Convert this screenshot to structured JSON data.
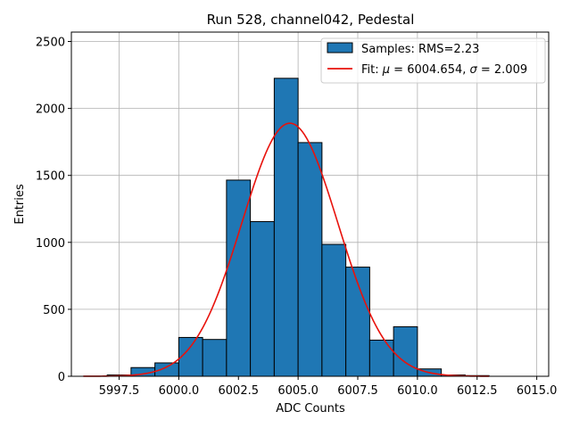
{
  "chart_data": {
    "type": "bar",
    "title": "Run 528, channel042, Pedestal",
    "xlabel": "ADC Counts",
    "ylabel": "Entries",
    "xlim": [
      5995.5,
      6015.5
    ],
    "ylim": [
      0,
      2570
    ],
    "grid": true,
    "legend_position": "top-right",
    "xticks": [
      5997.5,
      6000.0,
      6002.5,
      6005.0,
      6007.5,
      6010.0,
      6012.5,
      6015.0
    ],
    "xtick_labels": [
      "5997.5",
      "6000.0",
      "6002.5",
      "6005.0",
      "6007.5",
      "6010.0",
      "6012.5",
      "6015.0"
    ],
    "yticks": [
      0,
      500,
      1000,
      1500,
      2000,
      2500
    ],
    "ytick_labels": [
      "0",
      "500",
      "1000",
      "1500",
      "2000",
      "2500"
    ],
    "bin_edges": [
      5997,
      5998,
      5999,
      6000,
      6001,
      6002,
      6003,
      6004,
      6005,
      6006,
      6007,
      6008,
      6009,
      6010,
      6011,
      6012,
      6013
    ],
    "series": [
      {
        "name": "Samples: RMS=2.23",
        "kind": "histogram",
        "color": "#1f77b4",
        "edgecolor": "#000000",
        "values": [
          10,
          65,
          100,
          290,
          275,
          1465,
          1155,
          2225,
          1745,
          985,
          815,
          270,
          370,
          55,
          10,
          5
        ]
      },
      {
        "name": "Fit: μ = 6004.654, σ = 2.009",
        "kind": "gaussian-fit",
        "color": "#e8120c",
        "mu": 6004.654,
        "sigma": 2.009,
        "amplitude": 1890,
        "x_range": [
          5996,
          6013
        ]
      }
    ],
    "legend": {
      "samples_label": "Samples: RMS=2.23",
      "fit_label_prefix": "Fit: ",
      "fit_mu_symbol": "μ",
      "fit_mu_value": " = 6004.654, ",
      "fit_sigma_symbol": "σ",
      "fit_sigma_value": " = 2.009"
    }
  }
}
